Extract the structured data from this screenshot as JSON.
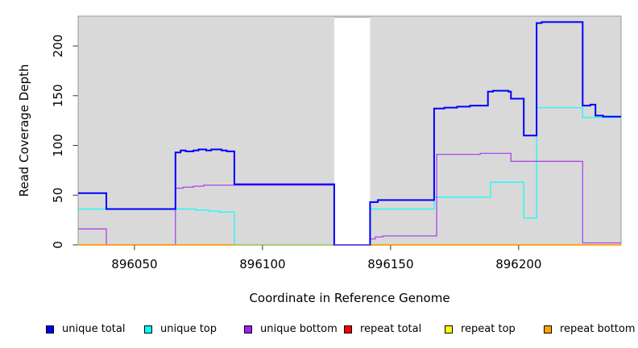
{
  "figure": {
    "plot_bg_color": "#d9d9d9",
    "plot_border_color": "#999999",
    "background_color": "#ffffff"
  },
  "axes": {
    "x_title": "Coordinate in Reference Genome",
    "y_title": "Read Coverage Depth"
  },
  "chart_data": {
    "type": "line",
    "subtype": "step-coverage",
    "title": "",
    "xlabel": "Coordinate in Reference Genome",
    "ylabel": "Read Coverage Depth",
    "xlim": [
      896028,
      896240
    ],
    "ylim": [
      0,
      230
    ],
    "x_ticks": [
      896050,
      896100,
      896150,
      896200
    ],
    "y_ticks": [
      0,
      50,
      100,
      150,
      200
    ],
    "grid": false,
    "legend_position": "bottom",
    "gap_region": {
      "from": 896128,
      "to": 896142,
      "color": "#ffffff",
      "note": "white band, no gray background; all series at 0"
    },
    "series": [
      {
        "name": "unique total",
        "color": "#0000ff",
        "points": [
          [
            896028,
            52
          ],
          [
            896039,
            36
          ],
          [
            896066,
            93
          ],
          [
            896068,
            95
          ],
          [
            896070,
            94
          ],
          [
            896073,
            95
          ],
          [
            896075,
            96
          ],
          [
            896078,
            95
          ],
          [
            896080,
            96
          ],
          [
            896084,
            95
          ],
          [
            896086,
            94
          ],
          [
            896089,
            61
          ],
          [
            896128,
            0
          ],
          [
            896142,
            43
          ],
          [
            896145,
            45
          ],
          [
            896167,
            137
          ],
          [
            896171,
            138
          ],
          [
            896176,
            139
          ],
          [
            896181,
            140
          ],
          [
            896188,
            154
          ],
          [
            896190,
            155
          ],
          [
            896196,
            154
          ],
          [
            896197,
            147
          ],
          [
            896202,
            110
          ],
          [
            896207,
            223
          ],
          [
            896209,
            224
          ],
          [
            896225,
            140
          ],
          [
            896228,
            141
          ],
          [
            896230,
            130
          ],
          [
            896233,
            129
          ]
        ]
      },
      {
        "name": "unique top",
        "color": "#00ffff",
        "points": [
          [
            896028,
            36
          ],
          [
            896074,
            35
          ],
          [
            896079,
            34
          ],
          [
            896083,
            33
          ],
          [
            896089,
            0
          ],
          [
            896142,
            36
          ],
          [
            896167,
            48
          ],
          [
            896189,
            63
          ],
          [
            896202,
            27
          ],
          [
            896207,
            138
          ],
          [
            896225,
            128
          ]
        ]
      },
      {
        "name": "unique bottom",
        "color": "#a020f0",
        "points": [
          [
            896028,
            16
          ],
          [
            896039,
            0
          ],
          [
            896066,
            57
          ],
          [
            896069,
            58
          ],
          [
            896073,
            59
          ],
          [
            896077,
            60
          ],
          [
            896128,
            0
          ],
          [
            896142,
            6
          ],
          [
            896144,
            8
          ],
          [
            896147,
            9
          ],
          [
            896168,
            91
          ],
          [
            896185,
            92
          ],
          [
            896197,
            84
          ],
          [
            896225,
            2
          ]
        ]
      },
      {
        "name": "repeat total",
        "color": "#ff0000",
        "value": 0,
        "spans": [
          [
            896028,
            896128
          ],
          [
            896142,
            896240
          ]
        ]
      },
      {
        "name": "repeat top",
        "color": "#ffff00",
        "value": 0,
        "spans": [
          [
            896028,
            896128
          ],
          [
            896142,
            896240
          ]
        ]
      },
      {
        "name": "repeat bottom",
        "color": "#ffa500",
        "value": 0,
        "spans": [
          [
            896028,
            896128
          ],
          [
            896142,
            896240
          ]
        ]
      }
    ],
    "baseline_overlaps": [
      {
        "name": "cyan-yellow overlap at zero",
        "color": "#8fd88f",
        "from": 896089,
        "to": 896128,
        "value": 0
      },
      {
        "name": "unique bottom across gap at zero",
        "color": "#a87fe0",
        "from": 896128,
        "to": 896142,
        "value": 0
      }
    ]
  },
  "legend": {
    "items": [
      {
        "label": "unique total",
        "color": "#0000ff"
      },
      {
        "label": "unique top",
        "color": "#00ffff"
      },
      {
        "label": "unique bottom",
        "color": "#a020f0"
      },
      {
        "label": "repeat total",
        "color": "#ff0000"
      },
      {
        "label": "repeat top",
        "color": "#ffff00"
      },
      {
        "label": "repeat bottom",
        "color": "#ffa500"
      }
    ]
  }
}
